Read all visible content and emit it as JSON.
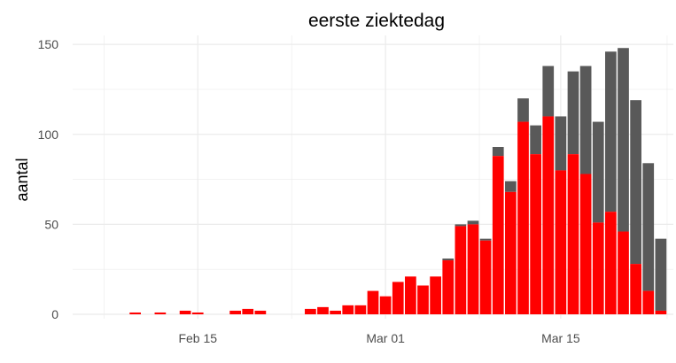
{
  "chart_data": {
    "type": "bar",
    "title": "eerste ziektedag",
    "xlabel": "",
    "ylabel": "aantal",
    "ylim": [
      0,
      155
    ],
    "yticks": [
      0,
      50,
      100,
      150
    ],
    "xlim": [
      "2020-02-05",
      "2020-03-24"
    ],
    "xticks": [
      {
        "date": "2020-02-15",
        "label": "Feb 15"
      },
      {
        "date": "2020-03-01",
        "label": "Mar 01"
      },
      {
        "date": "2020-03-15",
        "label": "Mar 15"
      }
    ],
    "grid": true,
    "stacked": true,
    "colors": {
      "lower": "#ff0000",
      "upper": "#595959",
      "grid": "#ebebeb"
    },
    "bars": [
      {
        "date": "2020-02-10",
        "red": 1,
        "total": 1
      },
      {
        "date": "2020-02-12",
        "red": 1,
        "total": 1
      },
      {
        "date": "2020-02-14",
        "red": 2,
        "total": 2
      },
      {
        "date": "2020-02-15",
        "red": 1,
        "total": 1
      },
      {
        "date": "2020-02-18",
        "red": 2,
        "total": 2
      },
      {
        "date": "2020-02-19",
        "red": 3,
        "total": 3
      },
      {
        "date": "2020-02-20",
        "red": 2,
        "total": 2
      },
      {
        "date": "2020-02-24",
        "red": 3,
        "total": 3
      },
      {
        "date": "2020-02-25",
        "red": 4,
        "total": 4
      },
      {
        "date": "2020-02-26",
        "red": 2,
        "total": 2
      },
      {
        "date": "2020-02-27",
        "red": 5,
        "total": 5
      },
      {
        "date": "2020-02-28",
        "red": 5,
        "total": 5
      },
      {
        "date": "2020-02-29",
        "red": 13,
        "total": 13
      },
      {
        "date": "2020-03-01",
        "red": 10,
        "total": 10
      },
      {
        "date": "2020-03-02",
        "red": 18,
        "total": 18
      },
      {
        "date": "2020-03-03",
        "red": 21,
        "total": 21
      },
      {
        "date": "2020-03-04",
        "red": 16,
        "total": 16
      },
      {
        "date": "2020-03-05",
        "red": 21,
        "total": 21
      },
      {
        "date": "2020-03-06",
        "red": 30,
        "total": 31
      },
      {
        "date": "2020-03-07",
        "red": 49,
        "total": 50
      },
      {
        "date": "2020-03-08",
        "red": 50,
        "total": 52
      },
      {
        "date": "2020-03-09",
        "red": 41,
        "total": 42
      },
      {
        "date": "2020-03-10",
        "red": 88,
        "total": 93
      },
      {
        "date": "2020-03-11",
        "red": 68,
        "total": 74
      },
      {
        "date": "2020-03-12",
        "red": 107,
        "total": 120
      },
      {
        "date": "2020-03-13",
        "red": 89,
        "total": 105
      },
      {
        "date": "2020-03-14",
        "red": 110,
        "total": 138
      },
      {
        "date": "2020-03-15",
        "red": 80,
        "total": 110
      },
      {
        "date": "2020-03-16",
        "red": 89,
        "total": 135
      },
      {
        "date": "2020-03-17",
        "red": 78,
        "total": 138
      },
      {
        "date": "2020-03-18",
        "red": 51,
        "total": 107
      },
      {
        "date": "2020-03-19",
        "red": 57,
        "total": 146
      },
      {
        "date": "2020-03-20",
        "red": 46,
        "total": 148
      },
      {
        "date": "2020-03-21",
        "red": 28,
        "total": 119
      },
      {
        "date": "2020-03-22",
        "red": 13,
        "total": 84
      },
      {
        "date": "2020-03-23",
        "red": 2,
        "total": 42
      }
    ]
  }
}
